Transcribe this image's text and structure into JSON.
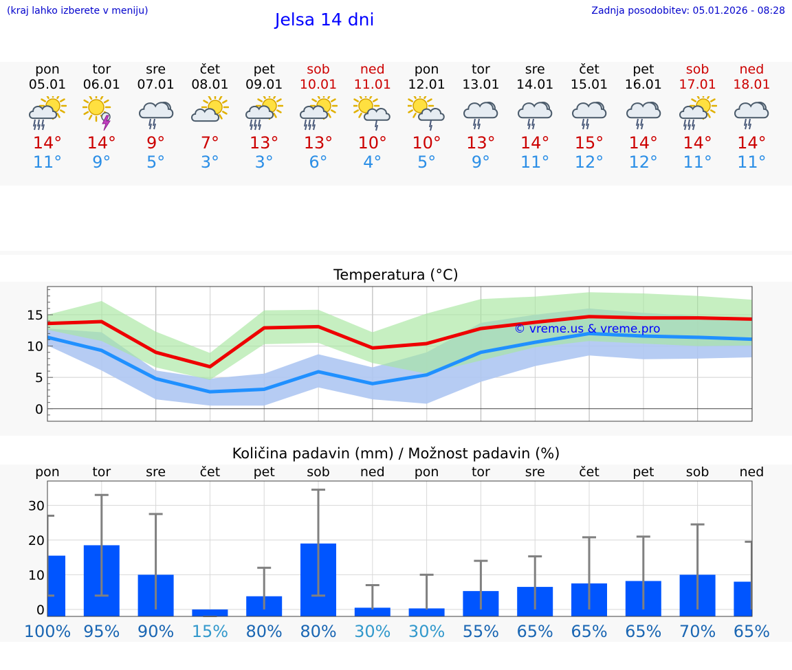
{
  "header": {
    "left_note": "(kraj lahko izberete v meniju)",
    "title": "Jelsa 14 dni",
    "updated": "Zadnja posodobitev: 05.01.2026 - 08:28"
  },
  "days": [
    {
      "name": "pon",
      "date": "05.01",
      "weekend": false,
      "icon": "sun-cloud-rain-icon",
      "tmax": "14°",
      "tmin": "11°"
    },
    {
      "name": "tor",
      "date": "06.01",
      "weekend": false,
      "icon": "sun-thunderstorm-icon",
      "tmax": "14°",
      "tmin": "9°"
    },
    {
      "name": "sre",
      "date": "07.01",
      "weekend": false,
      "icon": "cloud-rain-icon",
      "tmax": "9°",
      "tmin": "5°"
    },
    {
      "name": "čet",
      "date": "08.01",
      "weekend": false,
      "icon": "sun-cloud-icon",
      "tmax": "7°",
      "tmin": "3°"
    },
    {
      "name": "pet",
      "date": "09.01",
      "weekend": false,
      "icon": "sun-cloud-rain-icon",
      "tmax": "13°",
      "tmin": "3°"
    },
    {
      "name": "sob",
      "date": "10.01",
      "weekend": true,
      "icon": "sun-cloud-rain-icon",
      "tmax": "13°",
      "tmin": "6°"
    },
    {
      "name": "ned",
      "date": "11.01",
      "weekend": true,
      "icon": "sun-cloud-light-rain-icon",
      "tmax": "10°",
      "tmin": "4°"
    },
    {
      "name": "pon",
      "date": "12.01",
      "weekend": false,
      "icon": "sun-cloud-light-rain-icon",
      "tmax": "10°",
      "tmin": "5°"
    },
    {
      "name": "tor",
      "date": "13.01",
      "weekend": false,
      "icon": "cloud-rain-icon",
      "tmax": "13°",
      "tmin": "9°"
    },
    {
      "name": "sre",
      "date": "14.01",
      "weekend": false,
      "icon": "cloud-rain-icon",
      "tmax": "14°",
      "tmin": "11°"
    },
    {
      "name": "čet",
      "date": "15.01",
      "weekend": false,
      "icon": "cloud-rain-icon",
      "tmax": "15°",
      "tmin": "12°"
    },
    {
      "name": "pet",
      "date": "16.01",
      "weekend": false,
      "icon": "cloud-rain-icon",
      "tmax": "14°",
      "tmin": "12°"
    },
    {
      "name": "sob",
      "date": "17.01",
      "weekend": true,
      "icon": "sun-cloud-rain-icon",
      "tmax": "14°",
      "tmin": "11°"
    },
    {
      "name": "ned",
      "date": "18.01",
      "weekend": true,
      "icon": "cloud-rain-icon",
      "tmax": "14°",
      "tmin": "11°"
    }
  ],
  "colors": {
    "max_line": "#ee0000",
    "min_line": "#2090ff",
    "max_band": "#a8e6a0",
    "min_band": "#aec6f2",
    "overlap_band": "#7fbfa0",
    "bar": "#0055ff",
    "error_bar": "#808080",
    "prob_high": "#1a66b3",
    "prob_low": "#3399cc"
  },
  "chart_data": [
    {
      "type": "line",
      "title": "Temperatura (°C)",
      "watermark": "© vreme.us & vreme.pro",
      "yticks": [
        0,
        5,
        10,
        15
      ],
      "ylim": [
        -2,
        19.5
      ],
      "x": [
        0,
        1,
        2,
        3,
        4,
        5,
        6,
        7,
        8,
        9,
        10,
        11,
        12,
        13
      ],
      "series": [
        {
          "name": "max",
          "values": [
            13.6,
            13.9,
            9.0,
            6.7,
            12.9,
            13.1,
            9.7,
            10.4,
            12.8,
            13.8,
            14.7,
            14.5,
            14.5,
            14.3
          ]
        },
        {
          "name": "min",
          "values": [
            11.4,
            9.3,
            4.8,
            2.7,
            3.1,
            5.9,
            4.0,
            5.4,
            9.0,
            10.6,
            12.0,
            11.6,
            11.4,
            11.1
          ]
        }
      ],
      "bands": [
        {
          "name": "max_range",
          "low": [
            12.6,
            10.8,
            6.6,
            4.6,
            10.3,
            10.5,
            7.3,
            5.6,
            7.7,
            9.8,
            10.8,
            10.4,
            10.0,
            10.1
          ],
          "high": [
            15.0,
            17.2,
            12.3,
            8.9,
            15.7,
            15.8,
            12.2,
            15.2,
            17.5,
            17.9,
            18.6,
            18.4,
            18.0,
            17.4
          ]
        },
        {
          "name": "min_range",
          "low": [
            10.1,
            6.1,
            1.5,
            0.5,
            0.5,
            3.4,
            1.5,
            0.8,
            4.3,
            6.8,
            8.5,
            7.9,
            8.0,
            8.2
          ],
          "high": [
            12.8,
            12.2,
            6.1,
            4.8,
            5.6,
            8.7,
            6.6,
            9.0,
            13.7,
            15.0,
            16.0,
            15.3,
            14.8,
            14.4
          ]
        }
      ]
    },
    {
      "type": "bar",
      "title": "Količina padavin (mm) / Možnost padavin (%)",
      "categories": [
        "pon",
        "tor",
        "sre",
        "čet",
        "pet",
        "sob",
        "ned",
        "pon",
        "tor",
        "sre",
        "čet",
        "pet",
        "sob",
        "ned"
      ],
      "yticks": [
        0,
        10,
        20,
        30
      ],
      "ylim": [
        -2,
        37
      ],
      "values": [
        15.5,
        18.5,
        10,
        0,
        3.8,
        19,
        0.5,
        0.3,
        5.3,
        6.5,
        7.5,
        8.2,
        10,
        8
      ],
      "err_low": [
        4,
        4,
        0,
        0,
        0,
        4,
        0,
        0,
        0,
        0,
        0,
        0,
        0,
        0
      ],
      "err_high": [
        27,
        33,
        27.5,
        0,
        12,
        34.5,
        7,
        10,
        14,
        15.3,
        20.8,
        21,
        24.5,
        19.5
      ],
      "probability": [
        "100%",
        "95%",
        "90%",
        "15%",
        "80%",
        "80%",
        "30%",
        "30%",
        "55%",
        "65%",
        "65%",
        "65%",
        "70%",
        "65%"
      ]
    }
  ]
}
